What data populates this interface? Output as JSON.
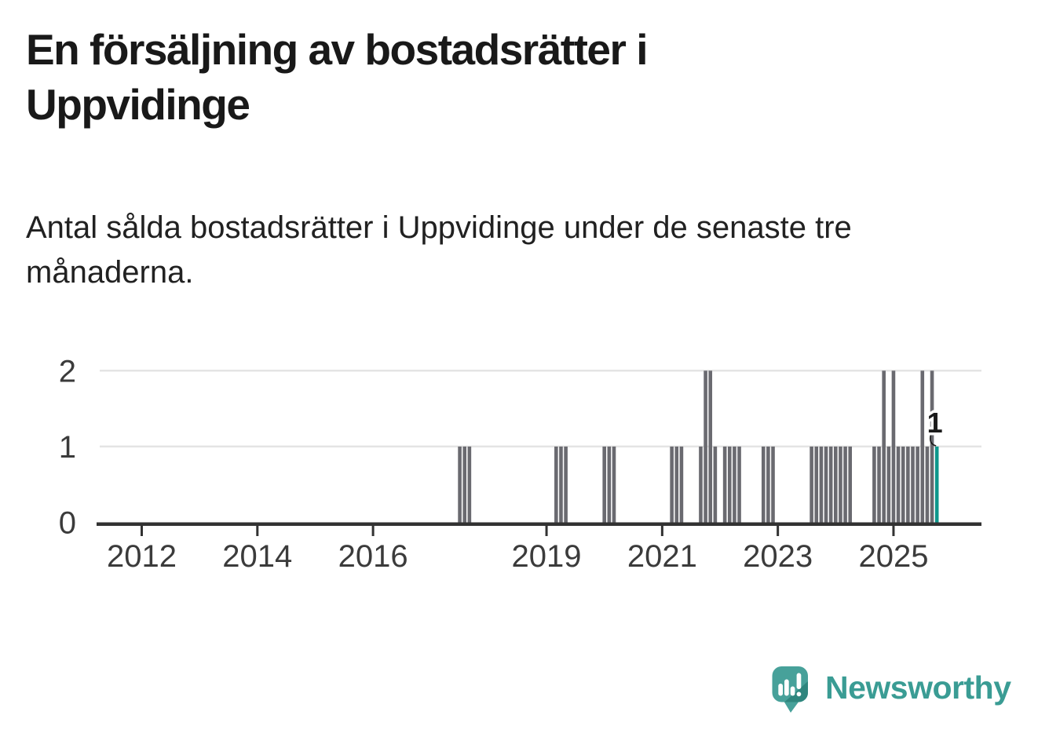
{
  "header": {
    "title": "En försäljning av bostadsrätter i Uppvidinge",
    "subtitle": "Antal sålda bostadsrätter i Uppvidinge under de senaste tre månaderna."
  },
  "chart_data": {
    "type": "bar",
    "title": "En försäljning av bostadsrätter i Uppvidinge",
    "subtitle": "Antal sålda bostadsrätter i Uppvidinge under de senaste tre månaderna.",
    "xlabel": "",
    "ylabel": "",
    "x_unit": "month",
    "x_range": [
      "2011-03",
      "2026-06"
    ],
    "ylim": [
      0,
      2
    ],
    "yticks": [
      0,
      1,
      2
    ],
    "xticks": [
      2012,
      2014,
      2016,
      2019,
      2021,
      2023,
      2025
    ],
    "grid": "horizontal",
    "legend": "none",
    "points": [
      {
        "month": "2017-07",
        "value": 1
      },
      {
        "month": "2017-08",
        "value": 1
      },
      {
        "month": "2017-09",
        "value": 1
      },
      {
        "month": "2019-03",
        "value": 1
      },
      {
        "month": "2019-04",
        "value": 1
      },
      {
        "month": "2019-05",
        "value": 1
      },
      {
        "month": "2020-01",
        "value": 1
      },
      {
        "month": "2020-02",
        "value": 1
      },
      {
        "month": "2020-03",
        "value": 1
      },
      {
        "month": "2021-03",
        "value": 1
      },
      {
        "month": "2021-04",
        "value": 1
      },
      {
        "month": "2021-05",
        "value": 1
      },
      {
        "month": "2021-09",
        "value": 1
      },
      {
        "month": "2021-10",
        "value": 2
      },
      {
        "month": "2021-11",
        "value": 2
      },
      {
        "month": "2021-12",
        "value": 1
      },
      {
        "month": "2022-02",
        "value": 1
      },
      {
        "month": "2022-03",
        "value": 1
      },
      {
        "month": "2022-04",
        "value": 1
      },
      {
        "month": "2022-05",
        "value": 1
      },
      {
        "month": "2022-10",
        "value": 1
      },
      {
        "month": "2022-11",
        "value": 1
      },
      {
        "month": "2022-12",
        "value": 1
      },
      {
        "month": "2023-08",
        "value": 1
      },
      {
        "month": "2023-09",
        "value": 1
      },
      {
        "month": "2023-10",
        "value": 1
      },
      {
        "month": "2023-11",
        "value": 1
      },
      {
        "month": "2023-12",
        "value": 1
      },
      {
        "month": "2024-01",
        "value": 1
      },
      {
        "month": "2024-02",
        "value": 1
      },
      {
        "month": "2024-03",
        "value": 1
      },
      {
        "month": "2024-04",
        "value": 1
      },
      {
        "month": "2024-09",
        "value": 1
      },
      {
        "month": "2024-10",
        "value": 1
      },
      {
        "month": "2024-11",
        "value": 2
      },
      {
        "month": "2024-12",
        "value": 1
      },
      {
        "month": "2025-01",
        "value": 2
      },
      {
        "month": "2025-02",
        "value": 1
      },
      {
        "month": "2025-03",
        "value": 1
      },
      {
        "month": "2025-04",
        "value": 1
      },
      {
        "month": "2025-05",
        "value": 1
      },
      {
        "month": "2025-06",
        "value": 1
      },
      {
        "month": "2025-07",
        "value": 2
      },
      {
        "month": "2025-08",
        "value": 1
      },
      {
        "month": "2025-09",
        "value": 2
      }
    ],
    "current_point": {
      "month": "2025-10",
      "value": 1,
      "label": "1"
    },
    "colors": {
      "bar": "#6A6A70",
      "accent": "#0E978C",
      "axis": "#323232",
      "gridline": "#E4E4E4",
      "tick_label": "#3B3B3B",
      "annotation": "#1B1B1B"
    }
  },
  "footer": {
    "brand": "Newsworthy",
    "brand_color": "#3A9C94"
  }
}
